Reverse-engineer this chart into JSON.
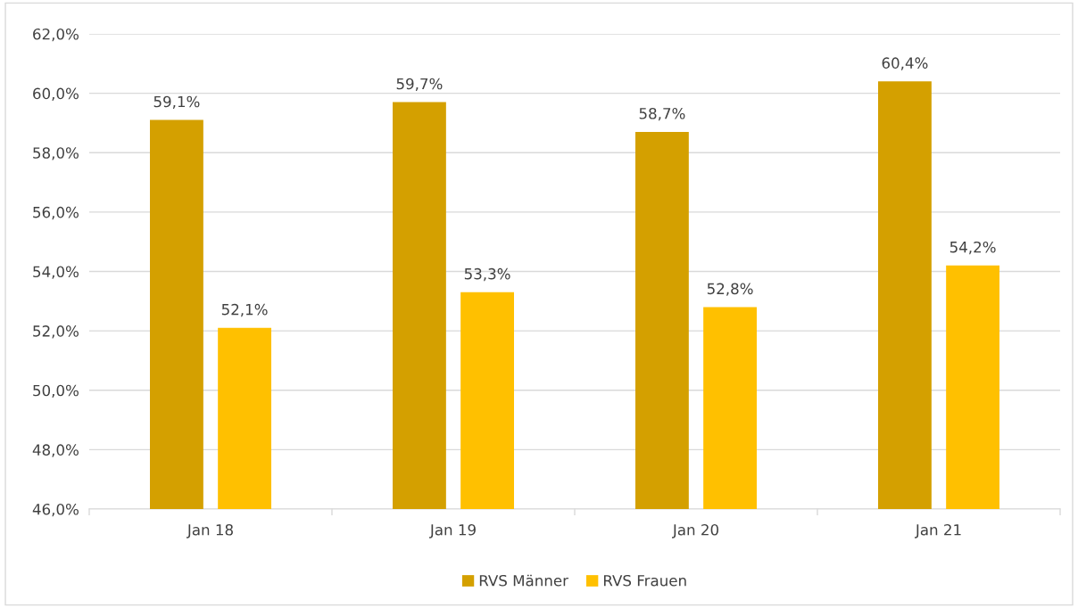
{
  "chart_data": {
    "type": "bar",
    "categories": [
      "Jan 18",
      "Jan 19",
      "Jan 20",
      "Jan 21"
    ],
    "series": [
      {
        "name": "RVS Männer",
        "color": "#d4a000",
        "values": [
          59.1,
          59.7,
          58.7,
          60.4
        ],
        "value_labels": [
          "59,1%",
          "59,7%",
          "58,7%",
          "60,4%"
        ]
      },
      {
        "name": "RVS Frauen",
        "color": "#ffc000",
        "values": [
          52.1,
          53.3,
          52.8,
          54.2
        ],
        "value_labels": [
          "52,1%",
          "53,3%",
          "52,8%",
          "54,2%"
        ]
      }
    ],
    "ylim": [
      46,
      62
    ],
    "yticks": [
      {
        "value": 46,
        "label": "46,0%"
      },
      {
        "value": 48,
        "label": "48,0%"
      },
      {
        "value": 50,
        "label": "50,0%"
      },
      {
        "value": 52,
        "label": "52,0%"
      },
      {
        "value": 54,
        "label": "54,0%"
      },
      {
        "value": 56,
        "label": "56,0%"
      },
      {
        "value": 58,
        "label": "58,0%"
      },
      {
        "value": 60,
        "label": "60,0%"
      },
      {
        "value": 62,
        "label": "62,0%"
      }
    ],
    "grid": "y",
    "legend": "bottom"
  }
}
